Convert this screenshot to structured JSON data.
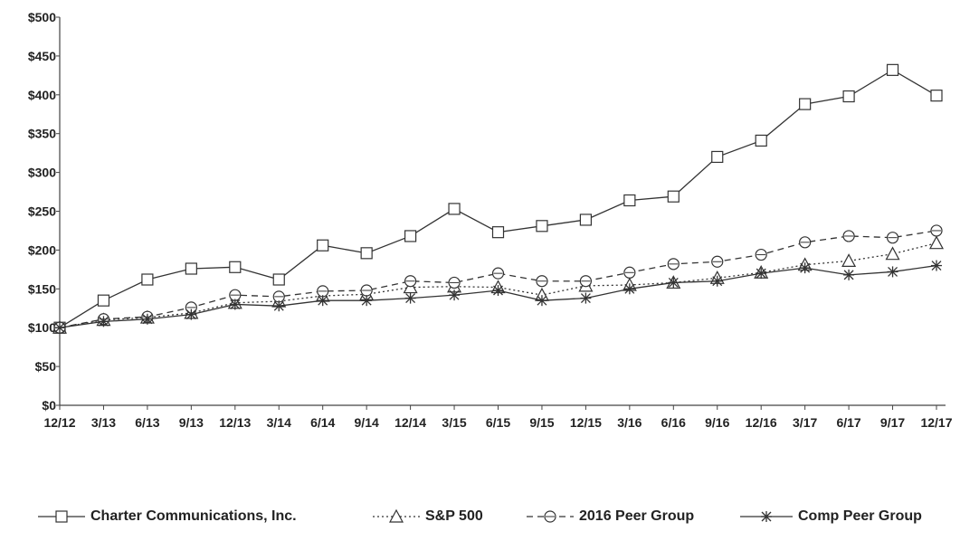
{
  "chart_data": {
    "type": "line",
    "title": "",
    "xlabel": "",
    "ylabel": "",
    "categories": [
      "12/12",
      "3/13",
      "6/13",
      "9/13",
      "12/13",
      "3/14",
      "6/14",
      "9/14",
      "12/14",
      "3/15",
      "6/15",
      "9/15",
      "12/15",
      "3/16",
      "6/16",
      "9/16",
      "12/16",
      "3/17",
      "6/17",
      "9/17",
      "12/17"
    ],
    "yticks": [
      "$0",
      "$50",
      "$100",
      "$150",
      "$200",
      "$250",
      "$300",
      "$350",
      "$400",
      "$450",
      "$500"
    ],
    "ylim": [
      0,
      500
    ],
    "grid": false,
    "legend_position": "bottom",
    "series": [
      {
        "name": "Charter Communications, Inc.",
        "marker": "square",
        "dash": "solid",
        "values": [
          100,
          135,
          162,
          176,
          178,
          162,
          206,
          196,
          218,
          253,
          223,
          231,
          239,
          264,
          269,
          320,
          341,
          388,
          398,
          432,
          399
        ]
      },
      {
        "name": "S&P 500",
        "marker": "triangle",
        "dash": "dotted",
        "values": [
          100,
          110,
          113,
          119,
          132,
          134,
          141,
          143,
          152,
          153,
          152,
          142,
          154,
          155,
          158,
          164,
          171,
          181,
          186,
          195,
          209
        ]
      },
      {
        "name": "2016 Peer Group",
        "marker": "circle",
        "dash": "dashed",
        "values": [
          100,
          111,
          114,
          126,
          142,
          140,
          147,
          148,
          160,
          158,
          170,
          160,
          160,
          171,
          182,
          185,
          194,
          210,
          218,
          216,
          225
        ]
      },
      {
        "name": "Comp Peer Group",
        "marker": "star",
        "dash": "solid",
        "values": [
          100,
          108,
          111,
          117,
          130,
          128,
          135,
          135,
          138,
          142,
          148,
          135,
          138,
          150,
          158,
          160,
          170,
          177,
          168,
          172,
          180
        ]
      }
    ]
  }
}
